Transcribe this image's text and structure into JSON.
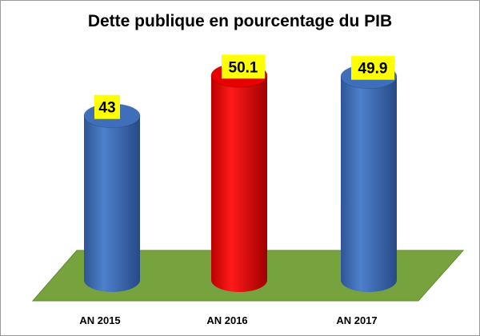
{
  "chart_data": {
    "type": "bar",
    "title": "Dette publique en pourcentage du PIB",
    "categories": [
      "AN 2015",
      "AN 2016",
      "AN 2017"
    ],
    "values": [
      43,
      50.1,
      49.9
    ],
    "data_labels": [
      "43",
      "50.1",
      "49.9"
    ],
    "bar_colors": [
      "#3f6fba",
      "#e60000",
      "#3f6fba"
    ],
    "floor_color": "#77a33f",
    "label_background": "#ffff00",
    "shape": "cylinder",
    "xlabel": "",
    "ylabel": "",
    "grid": false,
    "legend": "none"
  }
}
